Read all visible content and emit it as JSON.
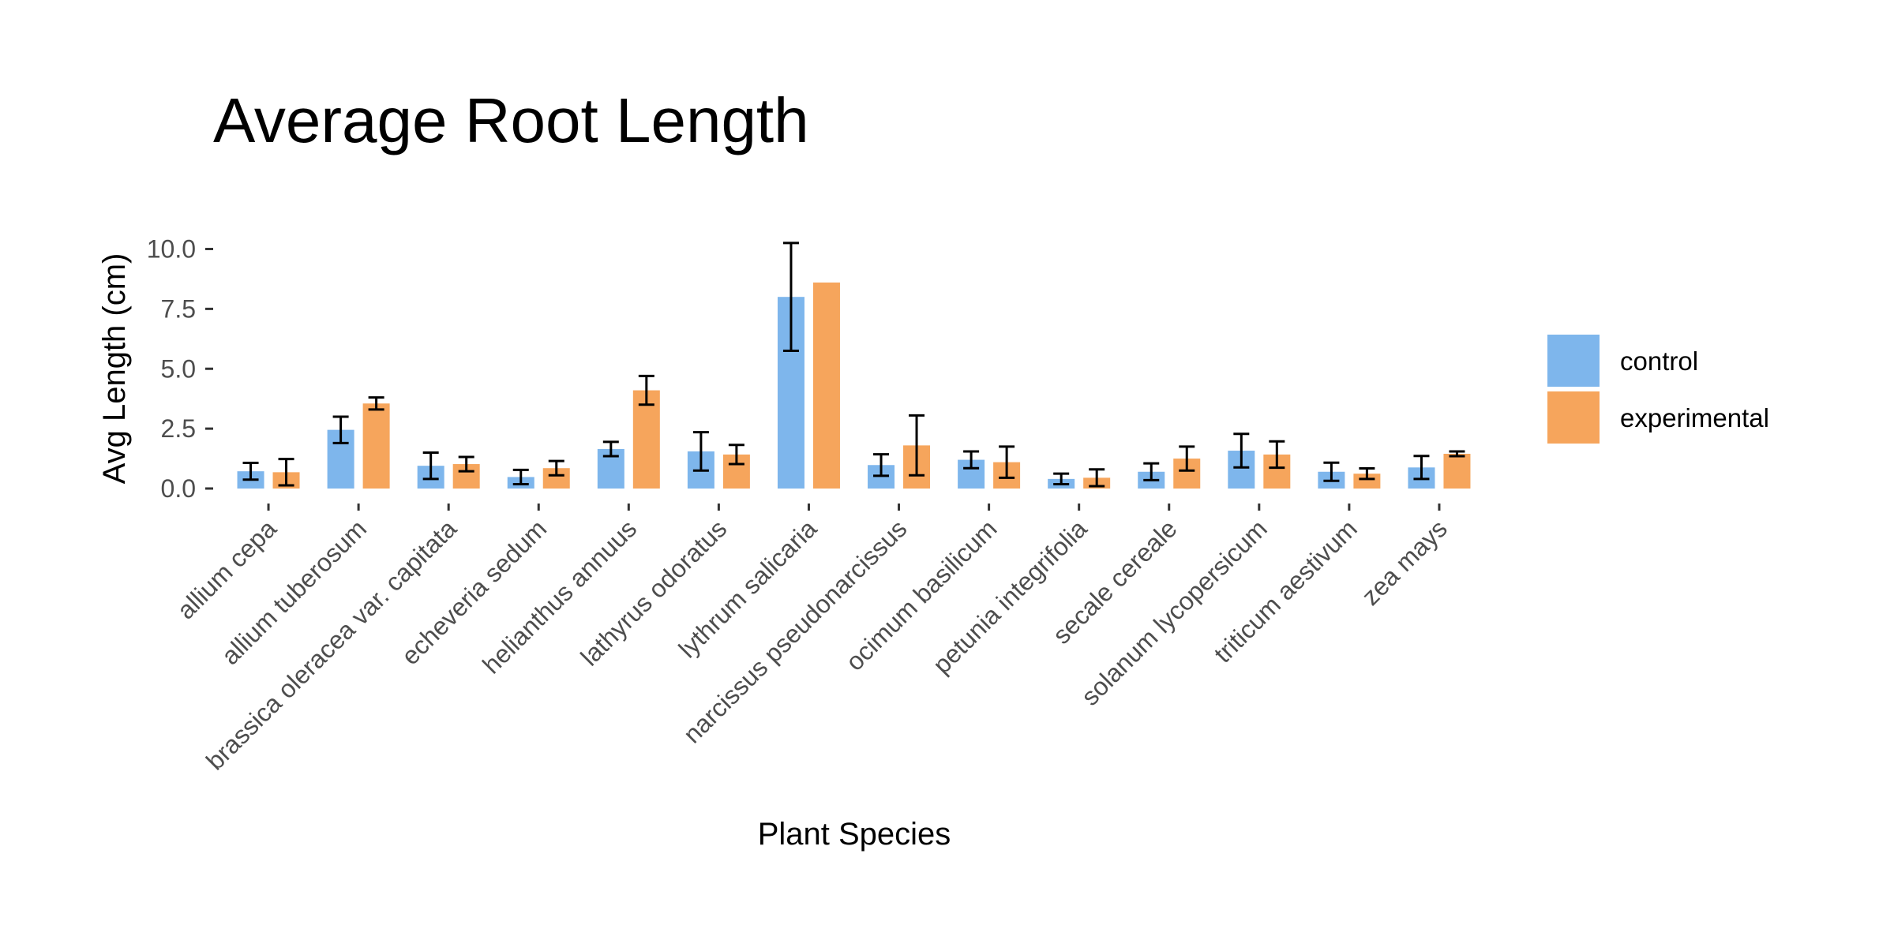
{
  "chart_data": {
    "type": "bar",
    "title": "Average Root Length",
    "xlabel": "Plant Species",
    "ylabel": "Avg Length (cm)",
    "ylim": [
      -0.25,
      10.5
    ],
    "yticks": [
      0.0,
      2.5,
      5.0,
      7.5,
      10.0
    ],
    "ytick_labels": [
      "0.0",
      "2.5",
      "5.0",
      "7.5",
      "10.0"
    ],
    "grid": false,
    "legend_position": "right",
    "categories": [
      "allium cepa",
      "allium tuberosum",
      "brassica oleracea var. capitata",
      "echeveria sedum",
      "helianthus annuus",
      "lathyrus odoratus",
      "lythrum salicaria",
      "narcissus pseudonarcissus",
      "ocimum basilicum",
      "petunia integrifolia",
      "secale cereale",
      "solanum lycopersicum",
      "triticum aestivum",
      "zea mays"
    ],
    "series": [
      {
        "name": "control",
        "color": "#7EB6EC",
        "values": [
          0.72,
          2.45,
          0.95,
          0.48,
          1.65,
          1.55,
          8.0,
          0.98,
          1.2,
          0.4,
          0.7,
          1.58,
          0.7,
          0.88
        ],
        "error": [
          0.35,
          0.55,
          0.55,
          0.3,
          0.3,
          0.8,
          2.25,
          0.45,
          0.35,
          0.22,
          0.35,
          0.7,
          0.38,
          0.48
        ]
      },
      {
        "name": "experimental",
        "color": "#F6A55C",
        "values": [
          0.68,
          3.55,
          1.02,
          0.85,
          4.1,
          1.42,
          8.6,
          1.8,
          1.1,
          0.45,
          1.25,
          1.42,
          0.62,
          1.45
        ],
        "error": [
          0.55,
          0.25,
          0.3,
          0.3,
          0.6,
          0.4,
          0.0,
          1.25,
          0.65,
          0.35,
          0.5,
          0.55,
          0.22,
          0.1
        ]
      }
    ]
  }
}
